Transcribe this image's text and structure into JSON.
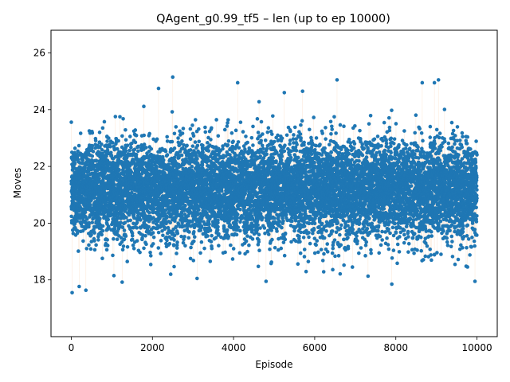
{
  "chart_data": {
    "type": "scatter",
    "title": "QAgent_g0.99_tf5 – len (up to ep 10000)",
    "xlabel": "Episode",
    "ylabel": "Moves",
    "xlim": [
      -500,
      10500
    ],
    "ylim": [
      16.0,
      26.8
    ],
    "xticks": [
      0,
      2000,
      4000,
      6000,
      8000,
      10000
    ],
    "yticks": [
      18,
      20,
      22,
      24,
      26
    ],
    "grid": false,
    "legend": "none",
    "marker_color": "#1f77b4",
    "line_color": "#f5c59b",
    "n_episodes": 10000,
    "distribution": {
      "mean": 21.2,
      "std": 0.85,
      "observed_min": 17.5,
      "observed_max": 25.1
    },
    "notable_points": [
      {
        "x": 20,
        "y": 17.55
      },
      {
        "x": 1050,
        "y": 18.15
      },
      {
        "x": 2450,
        "y": 18.2
      },
      {
        "x": 3100,
        "y": 18.05
      },
      {
        "x": 4800,
        "y": 17.95
      },
      {
        "x": 7900,
        "y": 17.85
      },
      {
        "x": 9950,
        "y": 17.95
      },
      {
        "x": 2500,
        "y": 25.15
      },
      {
        "x": 2150,
        "y": 24.75
      },
      {
        "x": 4100,
        "y": 24.95
      },
      {
        "x": 6550,
        "y": 25.05
      },
      {
        "x": 8650,
        "y": 24.95
      },
      {
        "x": 8950,
        "y": 24.95
      },
      {
        "x": 9050,
        "y": 25.05
      },
      {
        "x": 5250,
        "y": 24.6
      },
      {
        "x": 5700,
        "y": 24.65
      }
    ]
  }
}
